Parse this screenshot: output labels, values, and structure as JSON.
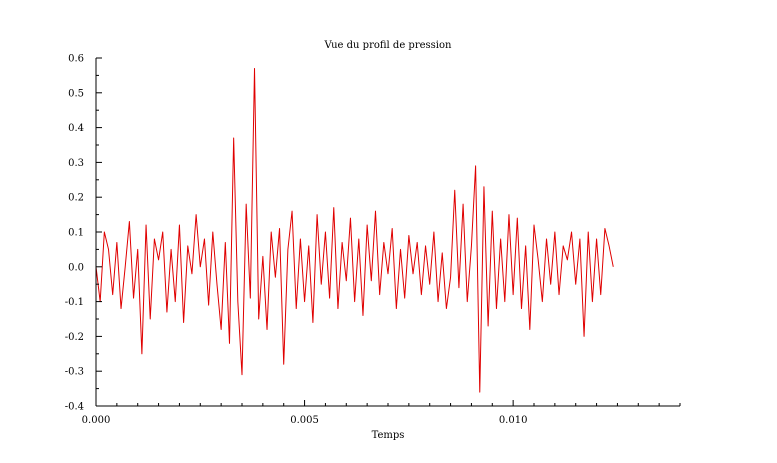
{
  "chart_data": {
    "type": "line",
    "title": "Vue du profil de pression",
    "xlabel": "Temps",
    "ylabel": "",
    "xlim": [
      0.0,
      0.014
    ],
    "ylim": [
      -0.4,
      0.6
    ],
    "x_ticks": [
      0.0,
      0.005,
      0.01
    ],
    "x_tick_labels": [
      "0.000",
      "0.005",
      "0.010"
    ],
    "y_ticks": [
      -0.4,
      -0.3,
      -0.2,
      -0.1,
      0.0,
      0.1,
      0.2,
      0.3,
      0.4,
      0.5,
      0.6
    ],
    "y_tick_labels": [
      "-0.4",
      "-0.3",
      "-0.2",
      "-0.1",
      "0.0",
      "0.1",
      "0.2",
      "0.3",
      "0.4",
      "0.5",
      "0.6"
    ],
    "grid": false,
    "legend": "none",
    "series": [
      {
        "color": "#e00000",
        "x": [
          0.0,
          0.0001,
          0.0002,
          0.0003,
          0.0004,
          0.0005,
          0.0006,
          0.0007,
          0.0008,
          0.0009,
          0.001,
          0.0011,
          0.0012,
          0.0013,
          0.0014,
          0.0015,
          0.0016,
          0.0017,
          0.0018,
          0.0019,
          0.002,
          0.0021,
          0.0022,
          0.0023,
          0.0024,
          0.0025,
          0.0026,
          0.0027,
          0.0028,
          0.0029,
          0.003,
          0.0031,
          0.0032,
          0.0033,
          0.0034,
          0.0035,
          0.0036,
          0.0037,
          0.0038,
          0.0039,
          0.004,
          0.0041,
          0.0042,
          0.0043,
          0.0044,
          0.0045,
          0.0046,
          0.0047,
          0.0048,
          0.0049,
          0.005,
          0.0051,
          0.0052,
          0.0053,
          0.0054,
          0.0055,
          0.0056,
          0.0057,
          0.0058,
          0.0059,
          0.006,
          0.0061,
          0.0062,
          0.0063,
          0.0064,
          0.0065,
          0.0066,
          0.0067,
          0.0068,
          0.0069,
          0.007,
          0.0071,
          0.0072,
          0.0073,
          0.0074,
          0.0075,
          0.0076,
          0.0077,
          0.0078,
          0.0079,
          0.008,
          0.0081,
          0.0082,
          0.0083,
          0.0084,
          0.0085,
          0.0086,
          0.0087,
          0.0088,
          0.0089,
          0.009,
          0.0091,
          0.0092,
          0.0093,
          0.0094,
          0.0095,
          0.0096,
          0.0097,
          0.0098,
          0.0099,
          0.01,
          0.0101,
          0.0102,
          0.0103,
          0.0104,
          0.0105,
          0.0106,
          0.0107,
          0.0108,
          0.0109,
          0.011,
          0.0111,
          0.0112,
          0.0113,
          0.0114,
          0.0115,
          0.0116,
          0.0117,
          0.0118,
          0.0119,
          0.012,
          0.0121,
          0.0122,
          0.0123,
          0.0124
        ],
        "y": [
          0.0,
          -0.1,
          0.1,
          0.05,
          -0.08,
          0.07,
          -0.12,
          0.0,
          0.13,
          -0.09,
          0.05,
          -0.25,
          0.12,
          -0.15,
          0.08,
          0.02,
          0.1,
          -0.13,
          0.05,
          -0.1,
          0.12,
          -0.16,
          0.06,
          -0.02,
          0.15,
          0.0,
          0.08,
          -0.11,
          0.1,
          -0.05,
          -0.18,
          0.07,
          -0.22,
          0.37,
          -0.1,
          -0.31,
          0.18,
          -0.09,
          0.57,
          -0.15,
          0.03,
          -0.18,
          0.1,
          -0.03,
          0.11,
          -0.28,
          0.05,
          0.16,
          -0.12,
          0.08,
          -0.1,
          0.06,
          -0.16,
          0.15,
          -0.05,
          0.1,
          -0.09,
          0.17,
          -0.12,
          0.07,
          -0.04,
          0.14,
          -0.1,
          0.08,
          -0.14,
          0.12,
          -0.04,
          0.16,
          -0.08,
          0.07,
          -0.02,
          0.11,
          -0.12,
          0.05,
          -0.09,
          0.09,
          -0.02,
          0.07,
          -0.08,
          0.06,
          -0.05,
          0.1,
          -0.1,
          0.04,
          -0.12,
          -0.03,
          0.22,
          -0.06,
          0.18,
          -0.1,
          0.06,
          0.29,
          -0.36,
          0.23,
          -0.17,
          0.16,
          -0.12,
          0.08,
          -0.1,
          0.15,
          -0.08,
          0.14,
          -0.12,
          0.06,
          -0.18,
          0.12,
          0.02,
          -0.1,
          0.08,
          -0.05,
          0.1,
          -0.08,
          0.06,
          0.02,
          0.1,
          -0.05,
          0.08,
          -0.2,
          0.1,
          -0.1,
          0.08,
          -0.08,
          0.11,
          0.06,
          0.0
        ]
      }
    ]
  }
}
